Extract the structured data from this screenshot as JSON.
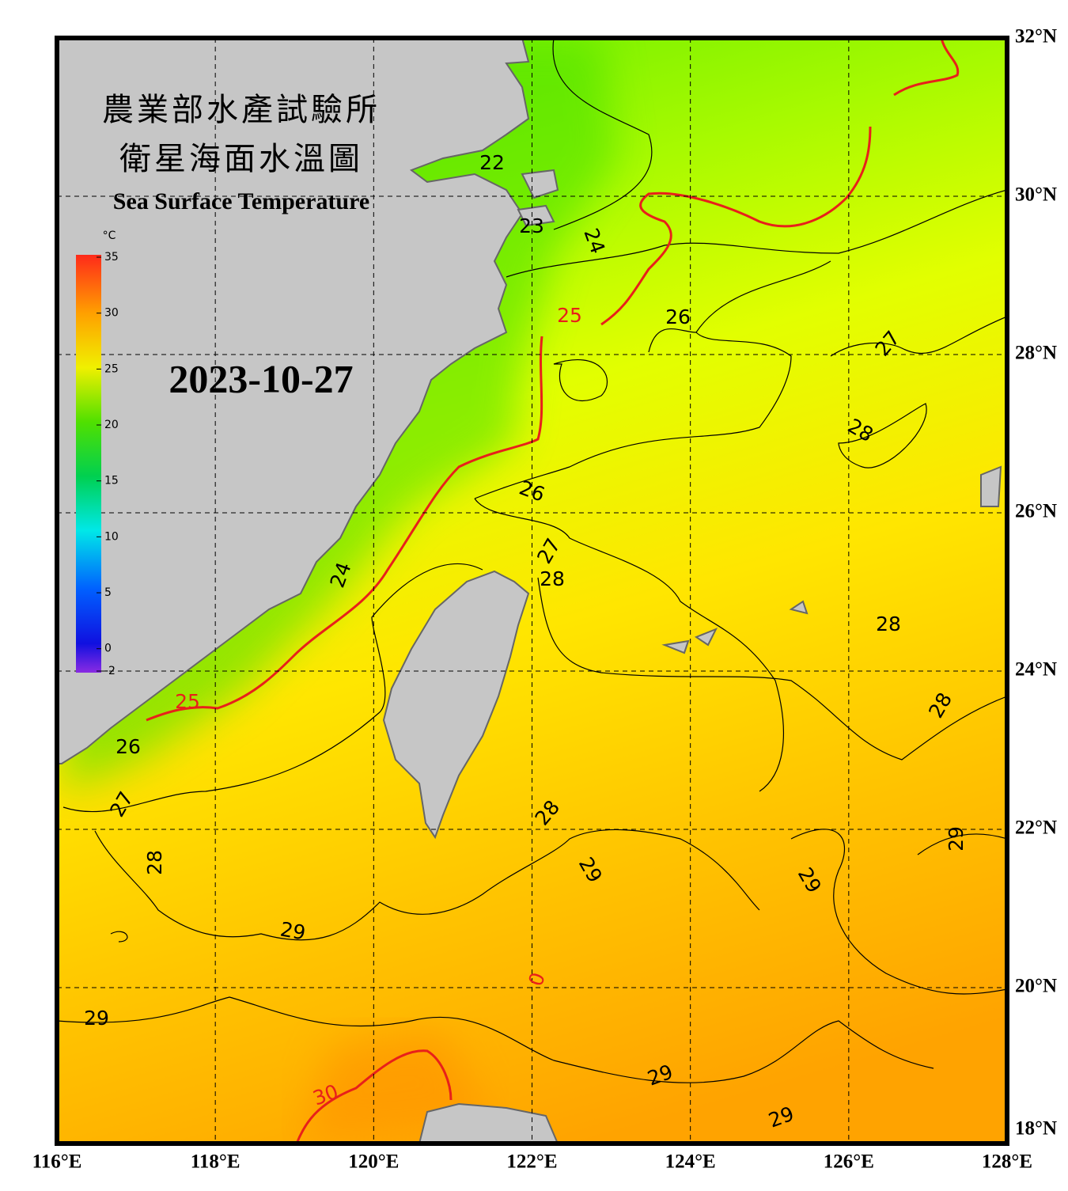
{
  "header": {
    "title_zh_1": "農業部水產試驗所",
    "title_zh_2": "衛星海面水溫圖",
    "title_en": "Sea Surface Temperature",
    "date": "2023-10-27"
  },
  "colorbar": {
    "unit": "°C",
    "range": [
      -2,
      35
    ],
    "ticks": [
      35,
      30,
      25,
      20,
      15,
      10,
      5,
      0,
      -2
    ]
  },
  "map": {
    "xlim": [
      116,
      128
    ],
    "ylim": [
      18,
      32
    ],
    "xticks": [
      {
        "value": 116,
        "label": "116°E"
      },
      {
        "value": 118,
        "label": "118°E"
      },
      {
        "value": 120,
        "label": "120°E"
      },
      {
        "value": 122,
        "label": "122°E"
      },
      {
        "value": 124,
        "label": "124°E"
      },
      {
        "value": 126,
        "label": "126°E"
      },
      {
        "value": 128,
        "label": "128°E"
      }
    ],
    "yticks": [
      {
        "value": 18,
        "label": "18°N"
      },
      {
        "value": 20,
        "label": "20°N"
      },
      {
        "value": 22,
        "label": "22°N"
      },
      {
        "value": 24,
        "label": "24°N"
      },
      {
        "value": 26,
        "label": "26°N"
      },
      {
        "value": 28,
        "label": "28°N"
      },
      {
        "value": 30,
        "label": "30°N"
      },
      {
        "value": 32,
        "label": "32°N"
      }
    ],
    "grid": true,
    "contour_labels": [
      {
        "label": "22",
        "color": "#000"
      },
      {
        "label": "23",
        "color": "#000"
      },
      {
        "label": "24",
        "color": "#000"
      },
      {
        "label": "25",
        "color": "#e8201a"
      },
      {
        "label": "26",
        "color": "#000"
      },
      {
        "label": "27",
        "color": "#000"
      },
      {
        "label": "28",
        "color": "#000"
      },
      {
        "label": "26",
        "color": "#000"
      },
      {
        "label": "27",
        "color": "#000"
      },
      {
        "label": "28",
        "color": "#000"
      },
      {
        "label": "28",
        "color": "#000"
      },
      {
        "label": "28",
        "color": "#000"
      },
      {
        "label": "24",
        "color": "#000"
      },
      {
        "label": "25",
        "color": "#e8201a"
      },
      {
        "label": "26",
        "color": "#000"
      },
      {
        "label": "27",
        "color": "#000"
      },
      {
        "label": "28",
        "color": "#000"
      },
      {
        "label": "29",
        "color": "#000"
      },
      {
        "label": "28",
        "color": "#000"
      },
      {
        "label": "29",
        "color": "#000"
      },
      {
        "label": "29",
        "color": "#000"
      },
      {
        "label": "29",
        "color": "#000"
      },
      {
        "label": "0",
        "color": "#e8201a"
      },
      {
        "label": "29",
        "color": "#000"
      },
      {
        "label": "29",
        "color": "#000"
      },
      {
        "label": "30",
        "color": "#e8201a"
      },
      {
        "label": "29",
        "color": "#000"
      }
    ]
  }
}
